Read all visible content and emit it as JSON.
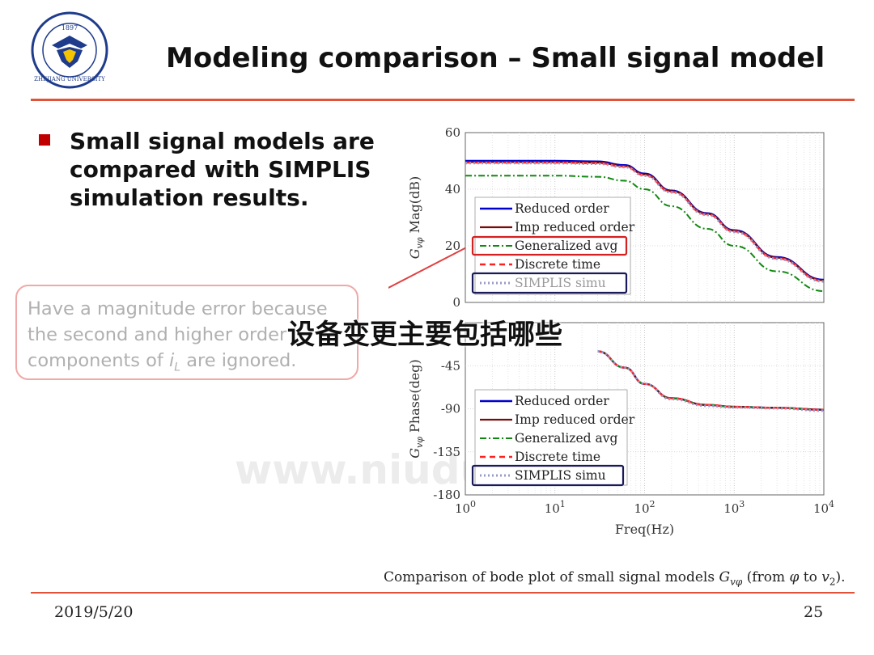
{
  "header": {
    "title": "Modeling comparison – Small signal model",
    "logo_text": "ZHEJIANG UNIVERSITY 1897 浙江大学"
  },
  "bullet": {
    "text": "Small signal models are compared with SIMPLIS simulation results."
  },
  "callout": {
    "line1": "Have a magnitude error because",
    "line2": "the second and higher order",
    "line3_pre": "components of ",
    "line3_var": "i",
    "line3_sub": "L",
    "line3_post": " are ignored."
  },
  "overlay": {
    "text": "设备变更主要包括哪些"
  },
  "watermark": {
    "url": "www.niudu.com"
  },
  "footer": {
    "caption_pre": "Comparison of bode plot of small signal models ",
    "caption_var": "G",
    "caption_var_sub": "vφ",
    "caption_mid": " (from ",
    "caption_phi": "φ",
    "caption_to": " to ",
    "caption_v": "v",
    "caption_v_sub": "2",
    "caption_post": ").",
    "date": "2019/5/20",
    "page": "25"
  },
  "colors": {
    "accent_rule": "#e0533a",
    "bullet": "#c00000",
    "reduced": "#0000cc",
    "imp_reduced": "#7a0a0a",
    "generalized": "#118811",
    "discrete": "#ff2020",
    "simplis": "#9999cc",
    "legend_highlight_red": "#d42020",
    "legend_highlight_navy": "#1a1a5a"
  },
  "chart_data": [
    {
      "type": "line",
      "xscale": "log",
      "xlim": [
        1,
        10000
      ],
      "ylim": [
        0,
        60
      ],
      "ylabel": "Mag(dB)",
      "ylabel_var": "G",
      "ylabel_sub": "vφ",
      "yticks": [
        0,
        20,
        40,
        60
      ],
      "grid": true,
      "legend": [
        "Reduced order",
        "Imp reduced order",
        "Generalized avg",
        "Discrete time",
        "SIMPLIS simu"
      ],
      "series": [
        {
          "name": "Reduced order",
          "style": "solid",
          "x": [
            1,
            10,
            30,
            60,
            100,
            200,
            500,
            1000,
            3000,
            10000
          ],
          "values": [
            50,
            50,
            49.8,
            48.5,
            45.5,
            39.5,
            31.5,
            25.5,
            16,
            8
          ]
        },
        {
          "name": "Imp reduced order",
          "style": "solid",
          "x": [
            1,
            10,
            30,
            60,
            100,
            200,
            500,
            1000,
            3000,
            10000
          ],
          "values": [
            49.6,
            49.6,
            49.4,
            48.2,
            45.2,
            39.3,
            31.3,
            25.3,
            15.8,
            7.8
          ]
        },
        {
          "name": "Generalized avg",
          "style": "dashdot",
          "x": [
            1,
            10,
            30,
            60,
            100,
            200,
            500,
            1000,
            3000,
            10000
          ],
          "values": [
            44.8,
            44.8,
            44.4,
            43,
            40,
            34,
            26,
            20,
            11,
            4
          ]
        },
        {
          "name": "Discrete time",
          "style": "dashed",
          "x": [
            1,
            10,
            30,
            60,
            100,
            200,
            500,
            1000,
            3000,
            10000
          ],
          "values": [
            49.4,
            49.4,
            49.2,
            48,
            45,
            39.1,
            31.1,
            25.1,
            15.6,
            7.6
          ]
        },
        {
          "name": "SIMPLIS simu",
          "style": "dotted",
          "x": [
            1,
            10,
            30,
            60,
            100,
            200,
            500,
            1000,
            3000,
            10000
          ],
          "values": [
            49.2,
            49.2,
            49,
            47.8,
            44.8,
            38.9,
            30.9,
            24.9,
            15.4,
            7.4
          ]
        }
      ]
    },
    {
      "type": "line",
      "xscale": "log",
      "xlim": [
        1,
        10000
      ],
      "ylim": [
        -180,
        0
      ],
      "xlabel": "Freq(Hz)",
      "ylabel": "Phase(deg)",
      "ylabel_var": "G",
      "ylabel_sub": "vφ",
      "yticks": [
        -180,
        -135,
        -90,
        -45
      ],
      "xticks": [
        "10^0",
        "10^1",
        "10^2",
        "10^3",
        "10^4"
      ],
      "grid": true,
      "legend": [
        "Reduced order",
        "Imp reduced order",
        "Generalized avg",
        "Discrete time",
        "SIMPLIS simu"
      ],
      "series": [
        {
          "name": "Reduced order",
          "style": "solid",
          "x": [
            30,
            60,
            100,
            200,
            500,
            1000,
            3000,
            10000
          ],
          "values": [
            -30,
            -47,
            -64,
            -79,
            -86,
            -88,
            -89,
            -91
          ]
        },
        {
          "name": "Imp reduced order",
          "style": "solid",
          "x": [
            30,
            60,
            100,
            200,
            500,
            1000,
            3000,
            10000
          ],
          "values": [
            -30,
            -47,
            -64,
            -79,
            -86,
            -88,
            -89,
            -91
          ]
        },
        {
          "name": "Generalized avg",
          "style": "dashdot",
          "x": [
            30,
            60,
            100,
            200,
            500,
            1000,
            3000,
            10000
          ],
          "values": [
            -30,
            -47,
            -64,
            -79,
            -86,
            -88,
            -89,
            -91
          ]
        },
        {
          "name": "Discrete time",
          "style": "dashed",
          "x": [
            30,
            60,
            100,
            200,
            500,
            1000,
            3000,
            10000
          ],
          "values": [
            -30,
            -47,
            -64,
            -79,
            -86,
            -88,
            -89,
            -91
          ]
        },
        {
          "name": "SIMPLIS simu",
          "style": "dotted",
          "x": [
            30,
            60,
            100,
            200,
            500,
            1000,
            3000,
            10000
          ],
          "values": [
            -30,
            -47,
            -64,
            -80,
            -87,
            -88.5,
            -89.5,
            -92
          ]
        }
      ]
    }
  ]
}
